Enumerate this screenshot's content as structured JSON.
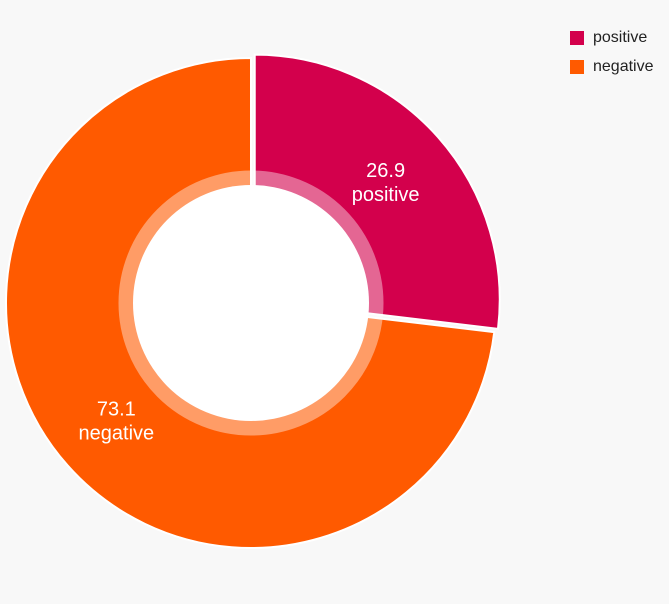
{
  "chart_data": {
    "type": "donut",
    "categories": [
      "positive",
      "negative"
    ],
    "values": [
      26.9,
      73.1
    ],
    "colors": [
      "#d3004c",
      "#ff5a00"
    ],
    "legend": "top-right"
  }
}
